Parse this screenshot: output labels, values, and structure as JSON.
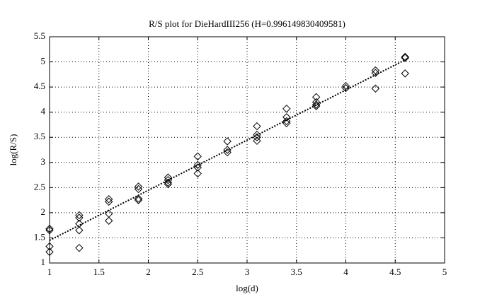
{
  "chart_data": {
    "type": "scatter",
    "title": "R/S plot for DieHardIII256 (H=0.996149830409581)",
    "xlabel": "log(d)",
    "ylabel": "log(R/S)",
    "xlim": [
      1,
      5
    ],
    "ylim": [
      1,
      5.5
    ],
    "xticks": [
      1,
      1.5,
      2,
      2.5,
      3,
      3.5,
      4,
      4.5,
      5
    ],
    "yticks": [
      1,
      1.5,
      2,
      2.5,
      3,
      3.5,
      4,
      4.5,
      5,
      5.5
    ],
    "grid": true,
    "series": [
      {
        "type": "scatter",
        "color": "#000000",
        "x": [
          1.0,
          1.0,
          1.0,
          1.0,
          1.3,
          1.3,
          1.3,
          1.3,
          1.3,
          1.6,
          1.6,
          1.6,
          1.6,
          1.9,
          1.9,
          1.9,
          1.9,
          2.2,
          2.2,
          2.2,
          2.2,
          2.5,
          2.5,
          2.5,
          2.5,
          2.8,
          2.8,
          2.8,
          3.1,
          3.1,
          3.1,
          3.1,
          3.4,
          3.4,
          3.4,
          3.4,
          3.7,
          3.7,
          3.7,
          3.7,
          4.0,
          4.0,
          4.3,
          4.3,
          4.3,
          4.6,
          4.6,
          4.6
        ],
        "values": [
          1.68,
          1.65,
          1.33,
          1.22,
          1.95,
          1.9,
          1.78,
          1.65,
          1.3,
          2.27,
          2.22,
          1.98,
          1.84,
          2.52,
          2.47,
          2.28,
          2.25,
          2.7,
          2.65,
          2.6,
          2.57,
          3.12,
          2.95,
          2.9,
          2.78,
          3.42,
          3.25,
          3.2,
          3.72,
          3.55,
          3.5,
          3.43,
          4.07,
          3.9,
          3.82,
          3.78,
          4.3,
          4.2,
          4.15,
          4.12,
          4.52,
          4.48,
          4.83,
          4.78,
          4.47,
          5.1,
          5.08,
          4.77
        ]
      },
      {
        "type": "line",
        "color": "#000000",
        "style": "dotted",
        "x": [
          1,
          4.62
        ],
        "values": [
          1.45,
          5.06
        ]
      }
    ]
  }
}
